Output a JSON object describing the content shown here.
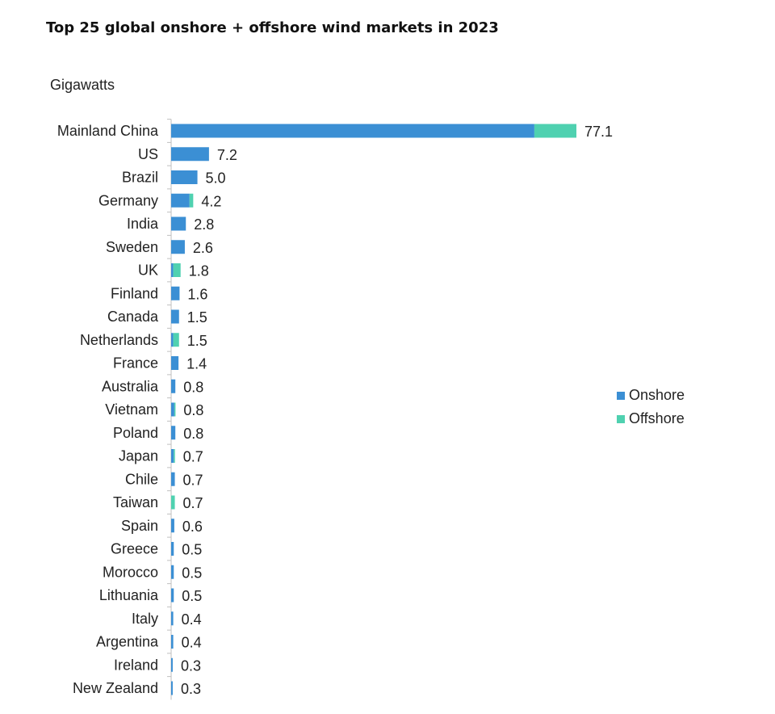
{
  "chart_data": {
    "type": "bar",
    "orientation": "horizontal",
    "stacked": true,
    "title": "Top 25 global onshore + offshore wind markets in 2023",
    "unit_label": "Gigawatts",
    "categories": [
      "Mainland China",
      "US",
      "Brazil",
      "Germany",
      "India",
      "Sweden",
      "UK",
      "Finland",
      "Canada",
      "Netherlands",
      "France",
      "Australia",
      "Vietnam",
      "Poland",
      "Japan",
      "Chile",
      "Taiwan",
      "Spain",
      "Greece",
      "Morocco",
      "Lithuania",
      "Italy",
      "Argentina",
      "Ireland",
      "New Zealand"
    ],
    "series": [
      {
        "name": "Onshore",
        "color": "#3b8fd4",
        "values": [
          69.1,
          7.2,
          5.0,
          3.5,
          2.8,
          2.6,
          0.4,
          1.6,
          1.5,
          0.4,
          1.4,
          0.8,
          0.6,
          0.8,
          0.5,
          0.7,
          0.0,
          0.6,
          0.5,
          0.5,
          0.5,
          0.4,
          0.4,
          0.3,
          0.3
        ]
      },
      {
        "name": "Offshore",
        "color": "#4fd1b0",
        "values": [
          8.0,
          0.0,
          0.0,
          0.7,
          0.0,
          0.0,
          1.4,
          0.0,
          0.0,
          1.1,
          0.0,
          0.0,
          0.2,
          0.0,
          0.2,
          0.0,
          0.7,
          0.0,
          0.0,
          0.0,
          0.0,
          0.0,
          0.0,
          0.0,
          0.0
        ]
      }
    ],
    "totals": [
      "77.1",
      "7.2",
      "5.0",
      "4.2",
      "2.8",
      "2.6",
      "1.8",
      "1.6",
      "1.5",
      "1.5",
      "1.4",
      "0.8",
      "0.8",
      "0.8",
      "0.7",
      "0.7",
      "0.7",
      "0.6",
      "0.5",
      "0.5",
      "0.5",
      "0.4",
      "0.4",
      "0.3",
      "0.3"
    ],
    "xlim": [
      0,
      77.1
    ],
    "grid": false,
    "legend_position": "right"
  }
}
